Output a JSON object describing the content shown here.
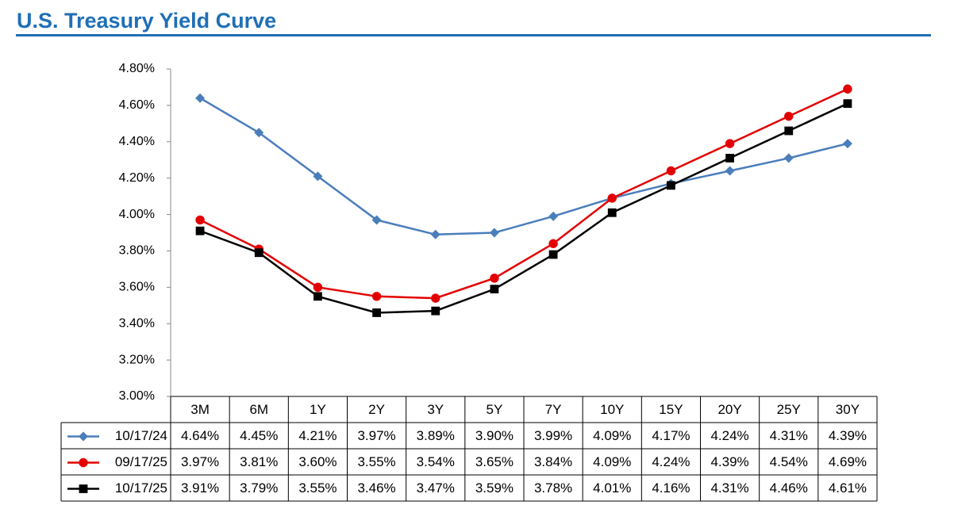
{
  "chart_data": {
    "type": "line",
    "title": "U.S. Treasury Yield Curve",
    "categories": [
      "3M",
      "6M",
      "1Y",
      "2Y",
      "3Y",
      "5Y",
      "7Y",
      "10Y",
      "15Y",
      "20Y",
      "25Y",
      "30Y"
    ],
    "series": [
      {
        "name": "10/17/24",
        "color": "#4a7ebb",
        "marker": "diamond",
        "values": [
          4.64,
          4.45,
          4.21,
          3.97,
          3.89,
          3.9,
          3.99,
          4.09,
          4.17,
          4.24,
          4.31,
          4.39
        ],
        "value_labels": [
          "4.64%",
          "4.45%",
          "4.21%",
          "3.97%",
          "3.89%",
          "3.90%",
          "3.99%",
          "4.09%",
          "4.17%",
          "4.24%",
          "4.31%",
          "4.39%"
        ]
      },
      {
        "name": "09/17/25",
        "color": "#e30000",
        "marker": "circle",
        "values": [
          3.97,
          3.81,
          3.6,
          3.55,
          3.54,
          3.65,
          3.84,
          4.09,
          4.24,
          4.39,
          4.54,
          4.69
        ],
        "value_labels": [
          "3.97%",
          "3.81%",
          "3.60%",
          "3.55%",
          "3.54%",
          "3.65%",
          "3.84%",
          "4.09%",
          "4.24%",
          "4.39%",
          "4.54%",
          "4.69%"
        ]
      },
      {
        "name": "10/17/25",
        "color": "#000000",
        "marker": "square",
        "values": [
          3.91,
          3.79,
          3.55,
          3.46,
          3.47,
          3.59,
          3.78,
          4.01,
          4.16,
          4.31,
          4.46,
          4.61
        ],
        "value_labels": [
          "3.91%",
          "3.79%",
          "3.55%",
          "3.46%",
          "3.47%",
          "3.59%",
          "3.78%",
          "4.01%",
          "4.16%",
          "4.31%",
          "4.46%",
          "4.61%"
        ]
      }
    ],
    "ylim": [
      3.0,
      4.8
    ],
    "yticks": [
      {
        "value": 3.0,
        "label": "3.00%"
      },
      {
        "value": 3.2,
        "label": "3.20%"
      },
      {
        "value": 3.4,
        "label": "3.40%"
      },
      {
        "value": 3.6,
        "label": "3.60%"
      },
      {
        "value": 3.8,
        "label": "3.80%"
      },
      {
        "value": 4.0,
        "label": "4.00%"
      },
      {
        "value": 4.2,
        "label": "4.20%"
      },
      {
        "value": 4.4,
        "label": "4.40%"
      },
      {
        "value": 4.6,
        "label": "4.60%"
      },
      {
        "value": 4.8,
        "label": "4.80%"
      }
    ],
    "grid": false
  }
}
